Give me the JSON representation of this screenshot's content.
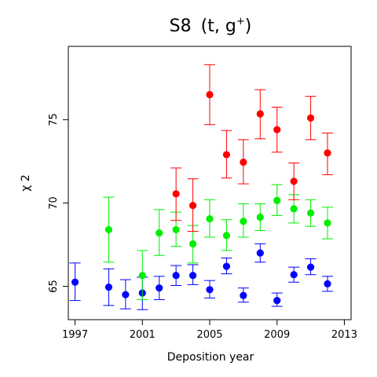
{
  "chart_data": {
    "type": "scatter",
    "title_main": "S8",
    "title_sub": "(t, g",
    "title_sup": "+",
    "title_end": ")",
    "xlabel": "Deposition year",
    "ylabel": "χ 2",
    "xlim": [
      1996.6,
      2013.4
    ],
    "ylim": [
      63.0,
      79.4
    ],
    "x_ticks": [
      1997,
      2001,
      2005,
      2009,
      2013
    ],
    "y_ticks": [
      65,
      70,
      75
    ],
    "grid": false,
    "legend": "none",
    "series": [
      {
        "color": "#0000ff",
        "points": [
          {
            "x": 1997,
            "y": 65.25,
            "low": 64.15,
            "high": 66.4
          },
          {
            "x": 1999,
            "y": 64.95,
            "low": 63.85,
            "high": 66.05
          },
          {
            "x": 2000,
            "y": 64.5,
            "low": 63.65,
            "high": 65.4
          },
          {
            "x": 2001,
            "y": 64.6,
            "low": 63.6,
            "high": 65.55
          },
          {
            "x": 2002,
            "y": 64.9,
            "low": 64.2,
            "high": 65.6
          },
          {
            "x": 2003,
            "y": 65.65,
            "low": 65.05,
            "high": 66.25
          },
          {
            "x": 2004,
            "y": 65.65,
            "low": 65.1,
            "high": 66.3
          },
          {
            "x": 2005,
            "y": 64.8,
            "low": 64.3,
            "high": 65.35
          },
          {
            "x": 2006,
            "y": 66.2,
            "low": 65.75,
            "high": 66.7
          },
          {
            "x": 2007,
            "y": 64.45,
            "low": 64.05,
            "high": 64.9
          },
          {
            "x": 2008,
            "y": 67.0,
            "low": 66.45,
            "high": 67.55
          },
          {
            "x": 2009,
            "y": 64.15,
            "low": 63.8,
            "high": 64.6
          },
          {
            "x": 2010,
            "y": 65.7,
            "low": 65.25,
            "high": 66.15
          },
          {
            "x": 2011,
            "y": 66.15,
            "low": 65.7,
            "high": 66.65
          },
          {
            "x": 2012,
            "y": 65.15,
            "low": 64.7,
            "high": 65.6
          }
        ]
      },
      {
        "color": "#00ee00",
        "points": [
          {
            "x": 1999,
            "y": 68.4,
            "low": 66.45,
            "high": 70.35
          },
          {
            "x": 2001,
            "y": 65.65,
            "low": 64.2,
            "high": 67.15
          },
          {
            "x": 2002,
            "y": 68.2,
            "low": 66.85,
            "high": 69.6
          },
          {
            "x": 2003,
            "y": 68.4,
            "low": 67.4,
            "high": 69.45
          },
          {
            "x": 2004,
            "y": 67.55,
            "low": 66.4,
            "high": 68.65
          },
          {
            "x": 2005,
            "y": 69.05,
            "low": 67.95,
            "high": 70.2
          },
          {
            "x": 2006,
            "y": 68.05,
            "low": 67.15,
            "high": 69.0
          },
          {
            "x": 2007,
            "y": 68.9,
            "low": 67.95,
            "high": 69.95
          },
          {
            "x": 2008,
            "y": 69.15,
            "low": 68.35,
            "high": 69.95
          },
          {
            "x": 2009,
            "y": 70.15,
            "low": 69.25,
            "high": 71.1
          },
          {
            "x": 2010,
            "y": 69.65,
            "low": 68.8,
            "high": 70.5
          },
          {
            "x": 2011,
            "y": 69.4,
            "low": 68.6,
            "high": 70.2
          },
          {
            "x": 2012,
            "y": 68.8,
            "low": 67.85,
            "high": 69.75
          }
        ]
      },
      {
        "color": "#ff0000",
        "points": [
          {
            "x": 2003,
            "y": 70.55,
            "low": 68.95,
            "high": 72.1
          },
          {
            "x": 2004,
            "y": 69.85,
            "low": 68.3,
            "high": 71.45
          },
          {
            "x": 2005,
            "y": 76.5,
            "low": 74.7,
            "high": 78.3
          },
          {
            "x": 2006,
            "y": 72.9,
            "low": 71.5,
            "high": 74.35
          },
          {
            "x": 2007,
            "y": 72.45,
            "low": 71.15,
            "high": 73.8
          },
          {
            "x": 2008,
            "y": 75.35,
            "low": 73.85,
            "high": 76.8
          },
          {
            "x": 2009,
            "y": 74.4,
            "low": 73.05,
            "high": 75.75
          },
          {
            "x": 2010,
            "y": 71.3,
            "low": 70.2,
            "high": 72.4
          },
          {
            "x": 2011,
            "y": 75.1,
            "low": 73.8,
            "high": 76.4
          },
          {
            "x": 2012,
            "y": 73.0,
            "low": 71.7,
            "high": 74.2
          }
        ]
      }
    ]
  }
}
